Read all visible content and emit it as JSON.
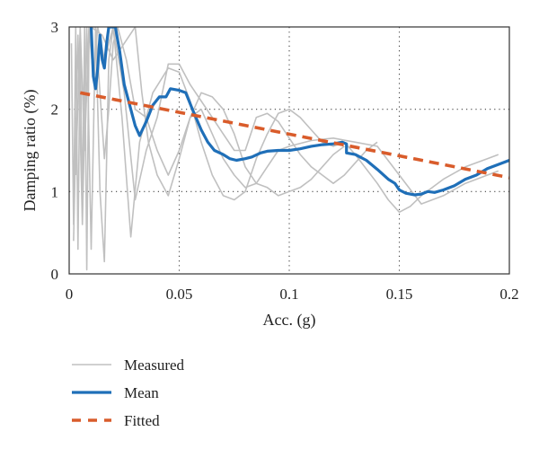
{
  "chart_data": {
    "type": "line",
    "xlabel": "Acc. (g)",
    "ylabel": "Damping ratio (%)",
    "xlim": [
      0,
      0.2
    ],
    "ylim": [
      0,
      3
    ],
    "xticks": [
      0,
      0.05,
      0.1,
      0.15,
      0.2
    ],
    "xtick_labels": [
      "0",
      "0.05",
      "0.1",
      "0.15",
      "0.2"
    ],
    "yticks": [
      0,
      1,
      2,
      3
    ],
    "ytick_labels": [
      "0",
      "1",
      "2",
      "3"
    ],
    "grid": "dotted",
    "legend_position": "below",
    "legend": [
      "Measured",
      "Mean",
      "Fitted"
    ],
    "colors": {
      "measured": "#c0c0c0",
      "mean": "#1f6fb8",
      "fitted": "#d95c2b",
      "frame": "#333333",
      "grid": "#444444"
    },
    "series": [
      {
        "name": "Measured",
        "style": "thin-gray",
        "legend": true,
        "points": [
          [
            0.001,
            2.8
          ],
          [
            0.002,
            0.6
          ],
          [
            0.003,
            3.0
          ],
          [
            0.004,
            0.3
          ],
          [
            0.005,
            2.9
          ],
          [
            0.006,
            0.8
          ],
          [
            0.007,
            3.0
          ],
          [
            0.008,
            0.05
          ],
          [
            0.009,
            2.8
          ],
          [
            0.01,
            3.0
          ],
          [
            0.012,
            3.0
          ],
          [
            0.014,
            2.2
          ],
          [
            0.016,
            1.4
          ],
          [
            0.018,
            2.0
          ],
          [
            0.02,
            2.8
          ],
          [
            0.022,
            3.0
          ],
          [
            0.026,
            2.6
          ],
          [
            0.03,
            2.0
          ],
          [
            0.035,
            1.9
          ],
          [
            0.04,
            1.5
          ],
          [
            0.045,
            1.2
          ],
          [
            0.05,
            1.5
          ],
          [
            0.055,
            1.9
          ],
          [
            0.06,
            2.0
          ],
          [
            0.065,
            1.7
          ],
          [
            0.07,
            1.4
          ],
          [
            0.075,
            1.2
          ],
          [
            0.08,
            1.05
          ],
          [
            0.085,
            1.1
          ],
          [
            0.09,
            1.3
          ],
          [
            0.095,
            1.5
          ],
          [
            0.1,
            1.55
          ],
          [
            0.11,
            1.62
          ],
          [
            0.12,
            1.65
          ],
          [
            0.13,
            1.6
          ],
          [
            0.14,
            1.55
          ],
          [
            0.15,
            1.2
          ],
          [
            0.16,
            0.85
          ],
          [
            0.17,
            0.95
          ],
          [
            0.18,
            1.1
          ],
          [
            0.19,
            1.2
          ],
          [
            0.195,
            1.25
          ]
        ]
      },
      {
        "name": "",
        "style": "thin-gray",
        "legend": false,
        "points": [
          [
            0.002,
            0.4
          ],
          [
            0.004,
            2.9
          ],
          [
            0.006,
            0.6
          ],
          [
            0.008,
            3.0
          ],
          [
            0.01,
            0.3
          ],
          [
            0.012,
            3.0
          ],
          [
            0.014,
            1.0
          ],
          [
            0.016,
            0.15
          ],
          [
            0.018,
            2.6
          ],
          [
            0.02,
            3.0
          ],
          [
            0.024,
            1.9
          ],
          [
            0.028,
            0.45
          ],
          [
            0.032,
            1.6
          ],
          [
            0.038,
            2.2
          ],
          [
            0.045,
            2.5
          ],
          [
            0.05,
            2.45
          ],
          [
            0.055,
            2.1
          ],
          [
            0.06,
            1.6
          ],
          [
            0.065,
            1.2
          ],
          [
            0.07,
            0.95
          ],
          [
            0.075,
            0.9
          ],
          [
            0.08,
            1.0
          ],
          [
            0.085,
            1.4
          ],
          [
            0.09,
            1.7
          ],
          [
            0.095,
            1.95
          ],
          [
            0.1,
            2.0
          ],
          [
            0.105,
            1.9
          ],
          [
            0.11,
            1.75
          ],
          [
            0.115,
            1.6
          ],
          [
            0.12,
            1.55
          ],
          [
            0.125,
            1.6
          ],
          [
            0.13,
            1.45
          ],
          [
            0.14,
            1.1
          ],
          [
            0.145,
            0.9
          ],
          [
            0.15,
            0.75
          ],
          [
            0.155,
            0.82
          ],
          [
            0.16,
            0.95
          ],
          [
            0.17,
            1.15
          ],
          [
            0.18,
            1.3
          ],
          [
            0.19,
            1.4
          ],
          [
            0.195,
            1.45
          ]
        ]
      },
      {
        "name": "",
        "style": "thin-gray",
        "legend": false,
        "points": [
          [
            0.003,
            1.2
          ],
          [
            0.005,
            3.0
          ],
          [
            0.007,
            1.5
          ],
          [
            0.009,
            3.0
          ],
          [
            0.011,
            2.4
          ],
          [
            0.013,
            3.0
          ],
          [
            0.016,
            2.6
          ],
          [
            0.02,
            3.0
          ],
          [
            0.025,
            2.2
          ],
          [
            0.03,
            0.9
          ],
          [
            0.035,
            1.5
          ],
          [
            0.04,
            1.9
          ],
          [
            0.045,
            2.55
          ],
          [
            0.05,
            2.55
          ],
          [
            0.055,
            2.3
          ],
          [
            0.06,
            2.1
          ],
          [
            0.065,
            1.9
          ],
          [
            0.07,
            1.7
          ],
          [
            0.075,
            1.5
          ],
          [
            0.08,
            1.5
          ],
          [
            0.085,
            1.9
          ],
          [
            0.09,
            1.95
          ],
          [
            0.095,
            1.85
          ],
          [
            0.1,
            1.65
          ],
          [
            0.105,
            1.45
          ],
          [
            0.11,
            1.3
          ],
          [
            0.115,
            1.2
          ],
          [
            0.12,
            1.1
          ],
          [
            0.125,
            1.2
          ],
          [
            0.13,
            1.35
          ],
          [
            0.135,
            1.5
          ],
          [
            0.14,
            1.6
          ]
        ]
      },
      {
        "name": "",
        "style": "thin-gray",
        "legend": false,
        "points": [
          [
            0.01,
            3.0
          ],
          [
            0.015,
            2.9
          ],
          [
            0.02,
            2.6
          ],
          [
            0.025,
            2.8
          ],
          [
            0.03,
            3.0
          ],
          [
            0.033,
            2.2
          ],
          [
            0.036,
            1.6
          ],
          [
            0.04,
            1.2
          ],
          [
            0.045,
            0.95
          ],
          [
            0.05,
            1.4
          ],
          [
            0.055,
            1.9
          ],
          [
            0.06,
            2.2
          ],
          [
            0.065,
            2.15
          ],
          [
            0.07,
            2.0
          ],
          [
            0.075,
            1.7
          ],
          [
            0.08,
            1.3
          ],
          [
            0.085,
            1.1
          ],
          [
            0.09,
            1.05
          ],
          [
            0.095,
            0.95
          ],
          [
            0.1,
            1.0
          ],
          [
            0.105,
            1.05
          ],
          [
            0.11,
            1.15
          ],
          [
            0.115,
            1.3
          ],
          [
            0.12,
            1.45
          ],
          [
            0.125,
            1.55
          ]
        ]
      },
      {
        "name": "Mean",
        "style": "mean",
        "legend": true,
        "points": [
          [
            0.01,
            3.0
          ],
          [
            0.011,
            2.4
          ],
          [
            0.012,
            2.25
          ],
          [
            0.013,
            2.5
          ],
          [
            0.014,
            2.9
          ],
          [
            0.015,
            2.6
          ],
          [
            0.016,
            2.5
          ],
          [
            0.017,
            2.8
          ],
          [
            0.018,
            3.0
          ],
          [
            0.021,
            3.0
          ],
          [
            0.023,
            2.7
          ],
          [
            0.025,
            2.3
          ],
          [
            0.028,
            2.0
          ],
          [
            0.03,
            1.8
          ],
          [
            0.032,
            1.68
          ],
          [
            0.035,
            1.85
          ],
          [
            0.038,
            2.05
          ],
          [
            0.041,
            2.15
          ],
          [
            0.044,
            2.15
          ],
          [
            0.046,
            2.25
          ],
          [
            0.05,
            2.23
          ],
          [
            0.053,
            2.2
          ],
          [
            0.056,
            2.0
          ],
          [
            0.06,
            1.75
          ],
          [
            0.063,
            1.6
          ],
          [
            0.066,
            1.5
          ],
          [
            0.07,
            1.45
          ],
          [
            0.073,
            1.4
          ],
          [
            0.076,
            1.38
          ],
          [
            0.08,
            1.4
          ],
          [
            0.083,
            1.42
          ],
          [
            0.087,
            1.47
          ],
          [
            0.09,
            1.49
          ],
          [
            0.095,
            1.5
          ],
          [
            0.1,
            1.5
          ],
          [
            0.105,
            1.52
          ],
          [
            0.11,
            1.55
          ],
          [
            0.115,
            1.57
          ],
          [
            0.12,
            1.58
          ],
          [
            0.124,
            1.6
          ],
          [
            0.126,
            1.58
          ],
          [
            0.126,
            1.47
          ],
          [
            0.13,
            1.45
          ],
          [
            0.135,
            1.38
          ],
          [
            0.14,
            1.27
          ],
          [
            0.145,
            1.15
          ],
          [
            0.148,
            1.1
          ],
          [
            0.15,
            1.02
          ],
          [
            0.153,
            0.98
          ],
          [
            0.157,
            0.96
          ],
          [
            0.16,
            0.97
          ],
          [
            0.163,
            1.0
          ],
          [
            0.166,
            0.99
          ],
          [
            0.17,
            1.02
          ],
          [
            0.175,
            1.07
          ],
          [
            0.18,
            1.15
          ],
          [
            0.185,
            1.2
          ],
          [
            0.19,
            1.28
          ],
          [
            0.195,
            1.33
          ],
          [
            0.2,
            1.38
          ]
        ]
      },
      {
        "name": "Fitted",
        "style": "fitted",
        "legend": true,
        "points": [
          [
            0.005,
            2.2
          ],
          [
            0.2,
            1.17
          ]
        ]
      }
    ]
  }
}
